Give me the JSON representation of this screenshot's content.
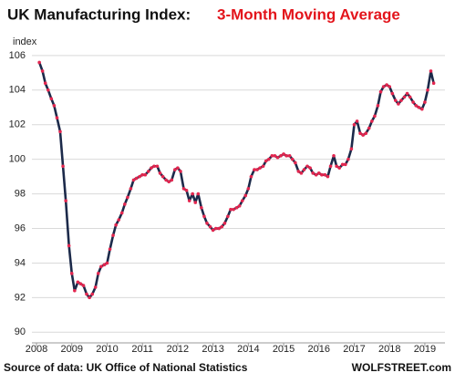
{
  "chart_data": {
    "type": "line",
    "title": "UK Manufacturing  Index:",
    "subtitle": "3-Month Moving Average",
    "y_label": "index",
    "source": "Source of data: UK Office of National Statistics",
    "credit": "WOLFSTREET.com",
    "x": [
      2008.08,
      2008.17,
      2008.25,
      2008.33,
      2008.42,
      2008.5,
      2008.58,
      2008.67,
      2008.75,
      2008.83,
      2008.92,
      2009,
      2009.08,
      2009.17,
      2009.25,
      2009.33,
      2009.42,
      2009.5,
      2009.58,
      2009.67,
      2009.75,
      2009.83,
      2009.92,
      2010,
      2010.08,
      2010.17,
      2010.25,
      2010.33,
      2010.42,
      2010.5,
      2010.58,
      2010.67,
      2010.75,
      2010.83,
      2010.92,
      2011,
      2011.08,
      2011.17,
      2011.25,
      2011.33,
      2011.42,
      2011.5,
      2011.58,
      2011.67,
      2011.75,
      2011.83,
      2011.92,
      2012,
      2012.08,
      2012.17,
      2012.25,
      2012.33,
      2012.42,
      2012.5,
      2012.58,
      2012.67,
      2012.75,
      2012.83,
      2012.92,
      2013,
      2013.08,
      2013.17,
      2013.25,
      2013.33,
      2013.42,
      2013.5,
      2013.58,
      2013.67,
      2013.75,
      2013.83,
      2013.92,
      2014,
      2014.08,
      2014.17,
      2014.25,
      2014.33,
      2014.42,
      2014.5,
      2014.58,
      2014.67,
      2014.75,
      2014.83,
      2014.92,
      2015,
      2015.08,
      2015.17,
      2015.25,
      2015.33,
      2015.42,
      2015.5,
      2015.58,
      2015.67,
      2015.75,
      2015.83,
      2015.92,
      2016,
      2016.08,
      2016.17,
      2016.25,
      2016.33,
      2016.42,
      2016.5,
      2016.58,
      2016.67,
      2016.75,
      2016.83,
      2016.92,
      2017,
      2017.08,
      2017.17,
      2017.25,
      2017.33,
      2017.42,
      2017.5,
      2017.58,
      2017.67,
      2017.75,
      2017.83,
      2017.92,
      2018,
      2018.08,
      2018.17,
      2018.25,
      2018.33,
      2018.42,
      2018.5,
      2018.58,
      2018.67,
      2018.75,
      2018.83,
      2018.92,
      2019,
      2019.08,
      2019.17,
      2019.25
    ],
    "series": [
      {
        "color": "#1c2a4a",
        "marker_color": "#e3264f",
        "values": [
          105.6,
          105.1,
          104.4,
          104.0,
          103.5,
          103.1,
          102.4,
          101.6,
          99.6,
          97.6,
          95.0,
          93.4,
          92.4,
          92.9,
          92.8,
          92.7,
          92.2,
          92.0,
          92.2,
          92.6,
          93.4,
          93.8,
          93.9,
          94.0,
          94.8,
          95.6,
          96.2,
          96.5,
          96.9,
          97.4,
          97.8,
          98.3,
          98.8,
          98.9,
          99.0,
          99.1,
          99.1,
          99.3,
          99.5,
          99.6,
          99.6,
          99.2,
          99.0,
          98.8,
          98.7,
          98.8,
          99.4,
          99.5,
          99.3,
          98.3,
          98.2,
          97.6,
          98.0,
          97.5,
          98.0,
          97.2,
          96.7,
          96.3,
          96.1,
          95.9,
          96.0,
          96.0,
          96.1,
          96.3,
          96.7,
          97.1,
          97.1,
          97.2,
          97.3,
          97.6,
          97.9,
          98.3,
          99.0,
          99.4,
          99.4,
          99.5,
          99.6,
          99.9,
          100.0,
          100.2,
          100.2,
          100.1,
          100.2,
          100.3,
          100.2,
          100.2,
          100.0,
          99.8,
          99.3,
          99.2,
          99.4,
          99.6,
          99.5,
          99.2,
          99.1,
          99.2,
          99.1,
          99.1,
          99.0,
          99.6,
          100.2,
          99.6,
          99.5,
          99.7,
          99.7,
          100.0,
          100.6,
          102.0,
          102.2,
          101.5,
          101.4,
          101.5,
          101.8,
          102.2,
          102.5,
          103.1,
          103.9,
          104.2,
          104.3,
          104.2,
          103.8,
          103.4,
          103.2,
          103.4,
          103.6,
          103.8,
          103.6,
          103.3,
          103.1,
          103.0,
          102.9,
          103.3,
          104.0,
          105.1,
          104.4
        ]
      }
    ],
    "xlim": [
      2007.87,
      2019.57
    ],
    "xticks": [
      2008,
      2009,
      2010,
      2011,
      2012,
      2013,
      2014,
      2015,
      2016,
      2017,
      2018,
      2019
    ],
    "ylim": [
      89.7,
      107.1
    ],
    "yticks": [
      90,
      92,
      94,
      96,
      98,
      100,
      102,
      104,
      106
    ],
    "grid": true
  }
}
